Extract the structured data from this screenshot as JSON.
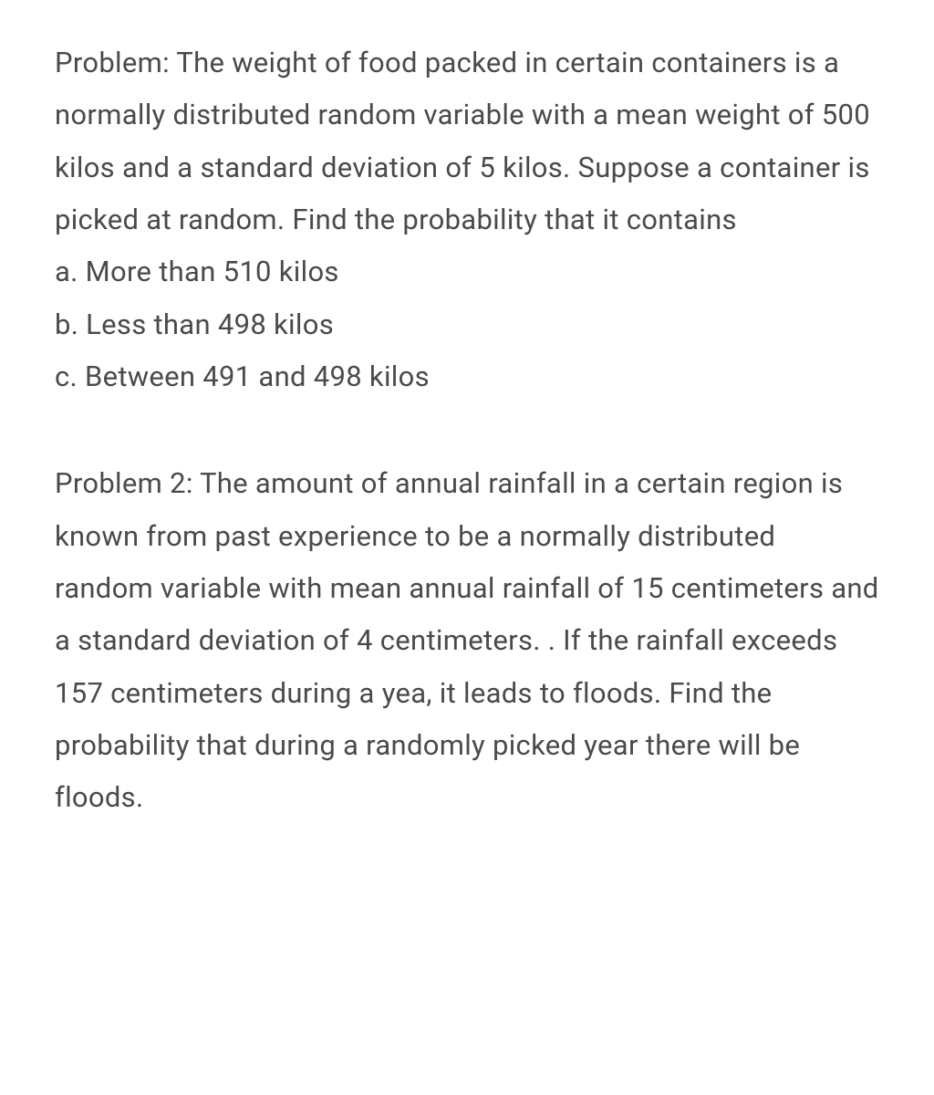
{
  "text_color": "#4a4a4a",
  "background_color": "#ffffff",
  "font_size": 31,
  "line_height": 1.85,
  "problem1": {
    "intro": "Problem: The weight of food packed in certain containers is a normally distributed random variable with a mean weight of 500 kilos and a standard deviation of 5 kilos. Suppose a container is picked at random. Find the probability that it contains",
    "item_a": "a. More than 510 kilos",
    "item_b": "b. Less than 498 kilos",
    "item_c": "c. Between 491 and 498 kilos"
  },
  "problem2": {
    "text": "Problem 2: The amount of annual rainfall in a certain region is known from past experience to be a normally distributed random variable with mean annual rainfall of 15 centimeters and a standard deviation of 4 centimeters. . If the rainfall exceeds 157 centimeters during a yea, it leads to floods. Find the probability that during a randomly picked year there will be floods."
  }
}
